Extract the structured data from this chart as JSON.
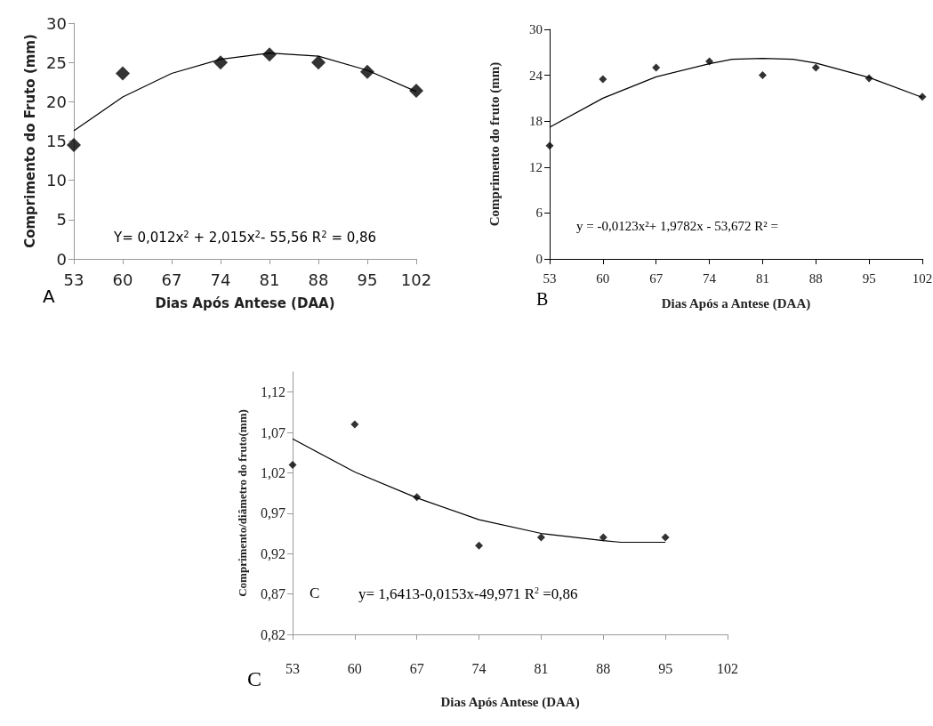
{
  "chart_data": [
    {
      "type": "scatter",
      "xlabel": "Dias Após Antese (DAA)",
      "ylabel": "Comprimento do Fruto (mm)",
      "xlim": [
        53,
        102
      ],
      "xticks": [
        53,
        60,
        67,
        74,
        81,
        88,
        95,
        102
      ],
      "ylim": [
        0,
        30
      ],
      "yticks": [
        0,
        5,
        10,
        15,
        20,
        25,
        30
      ],
      "marker": "diamond",
      "series": [
        {
          "color": "#000000",
          "x": [
            53,
            60,
            74,
            81,
            88,
            95,
            102
          ],
          "values": [
            14.5,
            23.6,
            25,
            26,
            25,
            23.8,
            21.4
          ]
        },
        {
          "type": "line",
          "marker": "none",
          "color": "#000000",
          "x": [
            53,
            60,
            67,
            74,
            81,
            88,
            95,
            102
          ],
          "values": [
            16.3,
            20.6,
            23.6,
            25.4,
            26.2,
            25.8,
            24.0,
            21.3
          ]
        }
      ],
      "annotations": [
        "Y= 0,012x$^{2}$ + 2,015x$^{2}$- 55,56 R$^{2}$ = 0,86",
        "A"
      ]
    },
    {
      "type": "scatter",
      "xlabel": "Dias Após a Antese (DAA)",
      "ylabel": "Comprimento do fruto (mm)",
      "xlim": [
        53,
        102
      ],
      "xticks": [
        53,
        60,
        67,
        74,
        81,
        88,
        95,
        102
      ],
      "ylim": [
        0,
        30
      ],
      "yticks": [
        0,
        6,
        12,
        18,
        24,
        30
      ],
      "marker": "diamond",
      "series": [
        {
          "color": "#000000",
          "x": [
            53,
            60,
            67,
            74,
            81,
            88,
            95,
            102
          ],
          "values": [
            14.8,
            23.5,
            25,
            25.8,
            24,
            25,
            23.6,
            21.2
          ]
        },
        {
          "type": "line",
          "marker": "none",
          "color": "#000000",
          "x": [
            53,
            60,
            67,
            74,
            77,
            81,
            85,
            88,
            95,
            102
          ],
          "values": [
            17.2,
            21,
            23.8,
            25.5,
            26.1,
            26.2,
            26.1,
            25.6,
            23.7,
            21.1
          ]
        }
      ],
      "annotations": [
        "y = -0,0123x²+ 1,9782x - 53,672 R² =",
        "B"
      ]
    },
    {
      "type": "scatter",
      "xlabel": "Dias Após Antese (DAA)",
      "ylabel": "Comprimento/diâmetro do fruto(mm)",
      "xlim": [
        53,
        102
      ],
      "xticks": [
        53,
        60,
        67,
        74,
        81,
        88,
        95,
        102
      ],
      "ylim": [
        0.82,
        1.145
      ],
      "yticks": [
        {
          "value": 0.82,
          "label": "0,82"
        },
        {
          "value": 0.87,
          "label": "0,87"
        },
        {
          "value": 0.92,
          "label": "0,92"
        },
        {
          "value": 0.97,
          "label": "0,97"
        },
        {
          "value": 1.02,
          "label": "1,02"
        },
        {
          "value": 1.07,
          "label": "1,07"
        },
        {
          "value": 1.12,
          "label": "1,12"
        }
      ],
      "marker": "diamond",
      "series": [
        {
          "color": "#000000",
          "x": [
            53,
            60,
            67,
            74,
            81,
            88,
            95
          ],
          "values": [
            1.03,
            1.08,
            0.99,
            0.93,
            0.94,
            0.94,
            0.94
          ]
        },
        {
          "type": "line",
          "marker": "none",
          "color": "#000000",
          "x": [
            53,
            60,
            67,
            74,
            81,
            88,
            90,
            95
          ],
          "values": [
            1.062,
            1.021,
            0.989,
            0.962,
            0.945,
            0.936,
            0.934,
            0.934
          ]
        }
      ],
      "annotations": [
        "C",
        "y= 1,6413-0,0153x-49,971 R$^{2}$ =0,86",
        "C"
      ]
    }
  ]
}
